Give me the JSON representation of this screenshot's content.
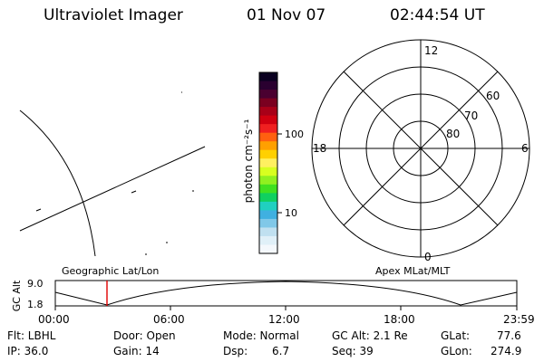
{
  "header": {
    "instrument": "Ultraviolet Imager",
    "date": "01 Nov 07",
    "time": "02:44:54 UT"
  },
  "colorbar": {
    "unit_label": "photon cm⁻²s⁻¹",
    "ticks": [
      "100",
      "10"
    ],
    "colors": [
      "#0a0020",
      "#2a0030",
      "#4a0030",
      "#7a0020",
      "#a80018",
      "#d00010",
      "#f02020",
      "#ff6010",
      "#ffa000",
      "#ffd000",
      "#fff060",
      "#d8ff20",
      "#90f020",
      "#40e020",
      "#10d060",
      "#20d0c0",
      "#40b0e0",
      "#80c8e8",
      "#c0e0f0",
      "#e0f0f8",
      "#f4f8fc"
    ]
  },
  "polar": {
    "mlt_labels": {
      "top": "12",
      "left": "18",
      "right": "6",
      "bottom": "0"
    },
    "lat_labels": [
      "60",
      "70",
      "80"
    ]
  },
  "timeline": {
    "y_axis_label": "GC Alt",
    "y_ticks": [
      "9.0",
      "1.8"
    ],
    "left_label": "Geographic Lat/Lon",
    "right_label": "Apex MLat/MLT",
    "time_ticks": [
      "00:00",
      "06:00",
      "12:00",
      "18:00",
      "23:59"
    ],
    "current_marker_color": "#e00000"
  },
  "info": {
    "flt": "Flt: LBHL",
    "ip": "IP: 36.0",
    "door": "Door: Open",
    "gain": "Gain: 14",
    "mode": "Mode: Normal",
    "dsp_label": "Dsp:",
    "dsp_value": "6.7",
    "gc_alt": "GC Alt: 2.1 Re",
    "seq": "Seq: 39",
    "glat_label": "GLat:",
    "glat_value": "77.6",
    "glon_label": "GLon:",
    "glon_value": "274.9"
  }
}
